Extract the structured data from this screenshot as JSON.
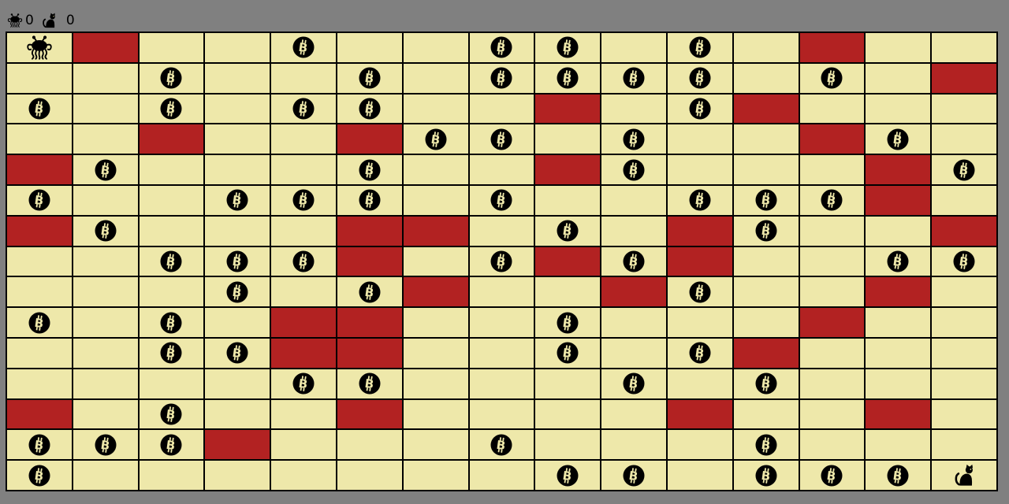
{
  "header": {
    "monster_score": "0",
    "cat_score": "0",
    "monster_icon": "flying-spaghetti-monster-icon",
    "cat_icon": "cat-icon"
  },
  "board": {
    "rows": 15,
    "cols": 15,
    "cell_legend": {
      ".": "empty-cell",
      "W": "wall-cell",
      "B": "bitcoin",
      "M": "monster-player",
      "C": "cat-goal"
    },
    "grid": [
      "MW..B..BB.B.W..",
      "..B..B.BBBB.B.W",
      "B.B.BB..W.BW...",
      "..W..WBB.B..WB.",
      "WB...B..WB...WB",
      "B..BBB.B..BBBW.",
      "WB...WW.B.WB..W",
      "..BBBW.BWBW..BB",
      "...B.BW..WB..W.",
      "B.B.WW..B...W..",
      "..BBWW..B.BW...",
      "....BB...B.B...",
      "W.B..W....W..W.",
      "BBBW...B...B...",
      "B.......BB.BBBC"
    ]
  },
  "colors": {
    "background": "#808080",
    "cell": "#EEE8AA",
    "wall": "#B22222",
    "grid_line": "#000000"
  }
}
